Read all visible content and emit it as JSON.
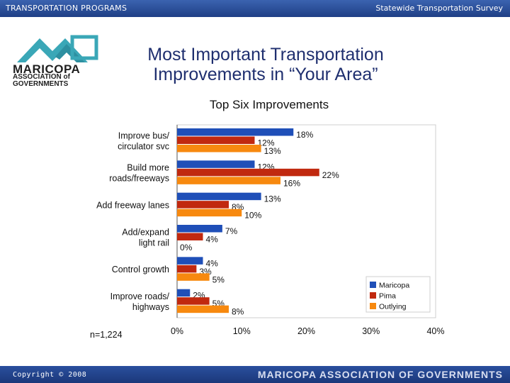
{
  "header": {
    "left": "TRANSPORTATION PROGRAMS",
    "right": "Statewide Transportation Survey"
  },
  "logo": {
    "name": "MARICOPA",
    "line2": "ASSOCIATION of",
    "line3": "GOVERNMENTS"
  },
  "footer": {
    "copyright": "Copyright © 2008",
    "org": "MARICOPA ASSOCIATION OF GOVERNMENTS"
  },
  "colors": {
    "maricopa": "#1f4fb8",
    "pima": "#c1290f",
    "outlying": "#f7890f",
    "header": "#2a4f9e"
  },
  "chart_data": {
    "type": "bar",
    "orientation": "horizontal",
    "title": "Most Important Transportation Improvements in “Your Area”",
    "subtitle": "Top Six Improvements",
    "categories": [
      [
        "Improve bus/",
        "circulator svc"
      ],
      [
        "Build more",
        "roads/freeways"
      ],
      [
        "Add freeway lanes"
      ],
      [
        "Add/expand",
        "light rail"
      ],
      [
        "Control growth"
      ],
      [
        "Improve roads/",
        "highways"
      ]
    ],
    "series": [
      {
        "name": "Maricopa",
        "values": [
          18,
          12,
          13,
          7,
          4,
          2
        ],
        "labels": [
          "18%",
          "12%",
          "13%",
          "7%",
          "4%",
          "2%"
        ]
      },
      {
        "name": "Pima",
        "values": [
          12,
          22,
          8,
          4,
          3,
          5
        ],
        "labels": [
          "12%",
          "22%",
          "8%",
          "4%",
          "3%",
          "5%"
        ]
      },
      {
        "name": "Outlying",
        "values": [
          13,
          16,
          10,
          0,
          5,
          8
        ],
        "labels": [
          "13%",
          "16%",
          "10%",
          "0%",
          "5%",
          "8%"
        ]
      }
    ],
    "xlim": [
      0,
      40
    ],
    "xticks": [
      "0%",
      "10%",
      "20%",
      "30%",
      "40%"
    ],
    "note": "n=1,224",
    "legend_position": "bottom-right"
  }
}
